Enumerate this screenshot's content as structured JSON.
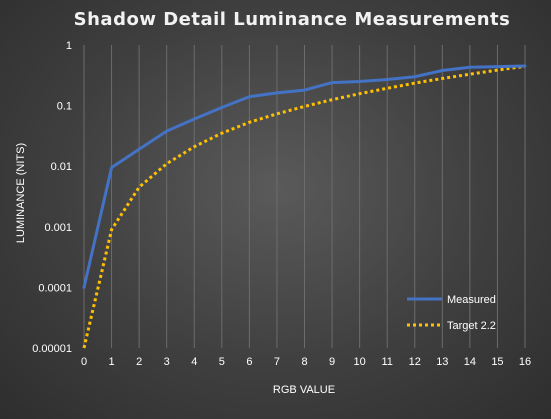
{
  "chart_data": {
    "type": "line",
    "title": "Shadow Detail Luminance Measurements",
    "xlabel": "RGB VALUE",
    "ylabel": "LUMINANCE (NITS)",
    "yscale": "log",
    "ylim": [
      1e-05,
      1
    ],
    "xlim": [
      0,
      16
    ],
    "x": [
      0,
      1,
      2,
      3,
      4,
      5,
      6,
      7,
      8,
      9,
      10,
      11,
      12,
      13,
      14,
      15,
      16
    ],
    "x_ticks": [
      "0",
      "1",
      "2",
      "3",
      "4",
      "5",
      "6",
      "7",
      "8",
      "9",
      "10",
      "11",
      "12",
      "13",
      "14",
      "15",
      "16"
    ],
    "y_ticks": [
      {
        "value": 1,
        "label": "1"
      },
      {
        "value": 0.1,
        "label": "0.1"
      },
      {
        "value": 0.01,
        "label": "0.01"
      },
      {
        "value": 0.001,
        "label": "0.001"
      },
      {
        "value": 0.0001,
        "label": "0.0001"
      },
      {
        "value": 1e-05,
        "label": "0.00001"
      }
    ],
    "grid": "vertical",
    "legend": "bottom-right",
    "series": [
      {
        "name": "Measured",
        "color": "#4472c4",
        "style": "solid",
        "values": [
          0.0001,
          0.0095,
          0.019,
          0.038,
          0.06,
          0.093,
          0.14,
          0.162,
          0.18,
          0.24,
          0.25,
          0.27,
          0.3,
          0.38,
          0.43,
          0.44,
          0.45
        ]
      },
      {
        "name": "Target 2.2",
        "color": "#ffc000",
        "style": "dotted",
        "values": [
          1e-05,
          0.0009,
          0.0045,
          0.011,
          0.021,
          0.035,
          0.053,
          0.073,
          0.097,
          0.125,
          0.157,
          0.193,
          0.235,
          0.28,
          0.33,
          0.385,
          0.445
        ]
      }
    ]
  }
}
